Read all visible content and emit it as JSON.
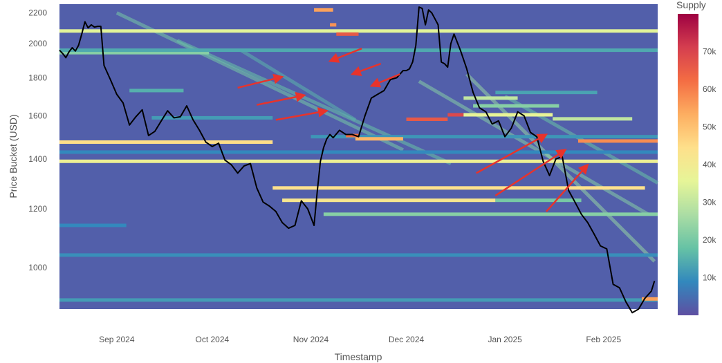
{
  "chart_data": {
    "type": "heatmap",
    "title": "",
    "xlabel": "Timestamp",
    "ylabel": "Price Bucket (USD)",
    "x_range": [
      "2024-08-14",
      "2025-02-18"
    ],
    "x_ticks": [
      {
        "date": "2024-09-01",
        "label": "Sep 2024"
      },
      {
        "date": "2024-10-01",
        "label": "Oct 2024"
      },
      {
        "date": "2024-11-01",
        "label": "Nov 2024"
      },
      {
        "date": "2024-12-01",
        "label": "Dec 2024"
      },
      {
        "date": "2025-01-01",
        "label": "Jan 2025"
      },
      {
        "date": "2025-02-01",
        "label": "Feb 2025"
      }
    ],
    "y_scale": "log",
    "y_range": [
      880,
      2260
    ],
    "y_ticks": [
      1000,
      1200,
      1400,
      1600,
      1800,
      2000,
      2200
    ],
    "colorbar": {
      "title": "Supply",
      "range": [
        0,
        80000
      ],
      "ticks": [
        {
          "value": 10000,
          "label": "10k"
        },
        {
          "value": 20000,
          "label": "20k"
        },
        {
          "value": 30000,
          "label": "30k"
        },
        {
          "value": 40000,
          "label": "40k"
        },
        {
          "value": 50000,
          "label": "50k"
        },
        {
          "value": 60000,
          "label": "60k"
        },
        {
          "value": 70000,
          "label": "70k"
        }
      ],
      "colorscale": [
        "#5e4fa2",
        "#3288bd",
        "#66c2a5",
        "#abdda4",
        "#e6f598",
        "#fee08b",
        "#fdae61",
        "#f46d43",
        "#d53e4f",
        "#9e0142"
      ]
    },
    "background_supply": 2500,
    "supply_bands": [
      {
        "start": "2024-08-14",
        "end": "2025-02-18",
        "price": 2080,
        "supply": 35000
      },
      {
        "start": "2024-08-14",
        "end": "2025-02-18",
        "price": 1390,
        "supply": 38000
      },
      {
        "start": "2024-08-14",
        "end": "2024-10-20",
        "price": 1475,
        "supply": 45000
      },
      {
        "start": "2024-10-20",
        "end": "2025-02-14",
        "price": 1280,
        "supply": 44000
      },
      {
        "start": "2024-10-23",
        "end": "2024-12-29",
        "price": 1232,
        "supply": 42000
      },
      {
        "start": "2024-12-29",
        "end": "2025-01-25",
        "price": 1232,
        "supply": 20000
      },
      {
        "start": "2024-11-05",
        "end": "2025-02-18",
        "price": 1180,
        "supply": 22000
      },
      {
        "start": "2024-08-14",
        "end": "2024-09-30",
        "price": 1945,
        "supply": 22000
      },
      {
        "start": "2024-08-14",
        "end": "2025-02-18",
        "price": 1960,
        "supply": 14000
      },
      {
        "start": "2024-08-14",
        "end": "2025-02-18",
        "price": 1040,
        "supply": 10000
      },
      {
        "start": "2024-08-14",
        "end": "2025-02-18",
        "price": 905,
        "supply": 12000
      },
      {
        "start": "2024-08-14",
        "end": "2024-09-04",
        "price": 1140,
        "supply": 9000
      },
      {
        "start": "2024-08-14",
        "end": "2025-02-18",
        "price": 1430,
        "supply": 9000
      },
      {
        "start": "2024-11-01",
        "end": "2025-02-18",
        "price": 1500,
        "supply": 11000
      },
      {
        "start": "2024-11-15",
        "end": "2024-11-30",
        "price": 1490,
        "supply": 52000
      },
      {
        "start": "2024-11-12",
        "end": "2024-11-16",
        "price": 1505,
        "supply": 62000
      },
      {
        "start": "2024-12-01",
        "end": "2024-12-14",
        "price": 1583,
        "supply": 66000
      },
      {
        "start": "2024-12-14",
        "end": "2024-12-19",
        "price": 1605,
        "supply": 69000
      },
      {
        "start": "2024-12-19",
        "end": "2025-01-16",
        "price": 1605,
        "supply": 36000
      },
      {
        "start": "2025-01-16",
        "end": "2025-02-10",
        "price": 1585,
        "supply": 30000
      },
      {
        "start": "2024-12-19",
        "end": "2025-01-05",
        "price": 1690,
        "supply": 30000
      },
      {
        "start": "2024-12-22",
        "end": "2025-01-18",
        "price": 1650,
        "supply": 22000
      },
      {
        "start": "2025-01-24",
        "end": "2025-02-18",
        "price": 1480,
        "supply": 58000
      },
      {
        "start": "2024-11-02",
        "end": "2024-11-08",
        "price": 2220,
        "supply": 55000
      },
      {
        "start": "2024-11-07",
        "end": "2024-11-09",
        "price": 2120,
        "supply": 57000
      },
      {
        "start": "2024-11-09",
        "end": "2024-11-16",
        "price": 2060,
        "supply": 66000
      },
      {
        "start": "2024-09-05",
        "end": "2024-09-22",
        "price": 1730,
        "supply": 15000
      },
      {
        "start": "2024-09-12",
        "end": "2024-10-20",
        "price": 1590,
        "supply": 12000
      },
      {
        "start": "2024-12-29",
        "end": "2025-01-30",
        "price": 1720,
        "supply": 13000
      },
      {
        "start": "2025-02-13",
        "end": "2025-02-18",
        "price": 908,
        "supply": 55000
      }
    ],
    "supply_diagonals": [
      {
        "start": "2024-09-01",
        "start_price": 2200,
        "end": "2024-11-30",
        "end_price": 1440,
        "supply": 20000
      },
      {
        "start": "2024-09-20",
        "start_price": 2020,
        "end": "2024-12-15",
        "end_price": 1380,
        "supply": 18000
      },
      {
        "start": "2024-10-10",
        "start_price": 1960,
        "end": "2024-11-15",
        "end_price": 1580,
        "supply": 16000
      },
      {
        "start": "2024-12-05",
        "start_price": 1780,
        "end": "2025-02-15",
        "end_price": 1180,
        "supply": 22000
      },
      {
        "start": "2024-12-20",
        "start_price": 1820,
        "end": "2025-02-17",
        "end_price": 1020,
        "supply": 24000
      },
      {
        "start": "2025-01-01",
        "start_price": 1700,
        "end": "2025-02-18",
        "end_price": 1300,
        "supply": 18000
      }
    ],
    "series": [
      {
        "type": "line",
        "x": [
          "2024-08-14",
          "2024-08-15",
          "2024-08-16",
          "2024-08-17",
          "2024-08-18",
          "2024-08-19",
          "2024-08-20",
          "2024-08-21",
          "2024-08-22",
          "2024-08-23",
          "2024-08-24",
          "2024-08-25",
          "2024-08-26",
          "2024-08-27",
          "2024-08-28",
          "2024-08-30",
          "2024-09-01",
          "2024-09-03",
          "2024-09-05",
          "2024-09-07",
          "2024-09-09",
          "2024-09-11",
          "2024-09-13",
          "2024-09-15",
          "2024-09-17",
          "2024-09-19",
          "2024-09-21",
          "2024-09-23",
          "2024-09-25",
          "2024-09-27",
          "2024-09-29",
          "2024-10-01",
          "2024-10-03",
          "2024-10-05",
          "2024-10-07",
          "2024-10-09",
          "2024-10-11",
          "2024-10-13",
          "2024-10-15",
          "2024-10-17",
          "2024-10-19",
          "2024-10-21",
          "2024-10-23",
          "2024-10-25",
          "2024-10-27",
          "2024-10-29",
          "2024-10-31",
          "2024-11-02",
          "2024-11-03",
          "2024-11-04",
          "2024-11-05",
          "2024-11-06",
          "2024-11-07",
          "2024-11-08",
          "2024-11-10",
          "2024-11-12",
          "2024-11-14",
          "2024-11-16",
          "2024-11-18",
          "2024-11-20",
          "2024-11-22",
          "2024-11-24",
          "2024-11-26",
          "2024-11-28",
          "2024-11-30",
          "2024-12-01",
          "2024-12-02",
          "2024-12-03",
          "2024-12-04",
          "2024-12-05",
          "2024-12-06",
          "2024-12-07",
          "2024-12-08",
          "2024-12-09",
          "2024-12-10",
          "2024-12-11",
          "2024-12-12",
          "2024-12-13",
          "2024-12-14",
          "2024-12-15",
          "2024-12-16",
          "2024-12-18",
          "2024-12-20",
          "2024-12-22",
          "2024-12-24",
          "2024-12-26",
          "2024-12-28",
          "2024-12-30",
          "2025-01-01",
          "2025-01-03",
          "2025-01-05",
          "2025-01-07",
          "2025-01-09",
          "2025-01-11",
          "2025-01-13",
          "2025-01-15",
          "2025-01-17",
          "2025-01-19",
          "2025-01-21",
          "2025-01-23",
          "2025-01-25",
          "2025-01-27",
          "2025-01-29",
          "2025-01-31",
          "2025-02-02",
          "2025-02-04",
          "2025-02-06",
          "2025-02-08",
          "2025-02-10",
          "2025-02-12",
          "2025-02-14",
          "2025-02-16",
          "2025-02-17"
        ],
        "y": [
          1960,
          1940,
          1915,
          1950,
          1975,
          1955,
          1990,
          2060,
          2140,
          2100,
          2120,
          2105,
          2110,
          2110,
          1870,
          1790,
          1710,
          1665,
          1555,
          1595,
          1630,
          1505,
          1525,
          1575,
          1625,
          1590,
          1595,
          1650,
          1580,
          1530,
          1475,
          1455,
          1470,
          1395,
          1375,
          1340,
          1370,
          1380,
          1280,
          1225,
          1210,
          1190,
          1150,
          1130,
          1140,
          1230,
          1200,
          1140,
          1265,
          1390,
          1450,
          1490,
          1510,
          1495,
          1530,
          1510,
          1510,
          1500,
          1600,
          1690,
          1710,
          1730,
          1790,
          1800,
          1840,
          1840,
          1850,
          1890,
          1990,
          2240,
          2230,
          2120,
          2220,
          2200,
          2160,
          2120,
          1890,
          1880,
          1860,
          2000,
          2060,
          1960,
          1850,
          1720,
          1640,
          1620,
          1560,
          1575,
          1500,
          1540,
          1620,
          1600,
          1520,
          1500,
          1390,
          1330,
          1400,
          1410,
          1270,
          1225,
          1180,
          1150,
          1110,
          1070,
          1060,
          950,
          940,
          900,
          870,
          880,
          910,
          930,
          960
        ]
      }
    ],
    "annotations": [
      {
        "type": "arrow",
        "color": "#e8332b",
        "from": [
          "2024-10-09",
          1745
        ],
        "to": [
          "2024-10-23",
          1805
        ]
      },
      {
        "type": "arrow",
        "color": "#e8332b",
        "from": [
          "2024-10-15",
          1655
        ],
        "to": [
          "2024-10-30",
          1705
        ]
      },
      {
        "type": "arrow",
        "color": "#e8332b",
        "from": [
          "2024-10-21",
          1580
        ],
        "to": [
          "2024-11-06",
          1625
        ]
      },
      {
        "type": "arrow",
        "color": "#e8332b",
        "from": [
          "2024-11-17",
          1970
        ],
        "to": [
          "2024-11-07",
          1895
        ]
      },
      {
        "type": "arrow",
        "color": "#e8332b",
        "from": [
          "2024-11-23",
          1880
        ],
        "to": [
          "2024-11-14",
          1820
        ]
      },
      {
        "type": "arrow",
        "color": "#e8332b",
        "from": [
          "2024-11-29",
          1820
        ],
        "to": [
          "2024-11-20",
          1755
        ]
      },
      {
        "type": "arrow",
        "color": "#e8332b",
        "from": [
          "2024-12-23",
          1340
        ],
        "to": [
          "2025-01-14",
          1510
        ]
      },
      {
        "type": "arrow",
        "color": "#e8332b",
        "from": [
          "2024-12-29",
          1250
        ],
        "to": [
          "2025-01-20",
          1440
        ]
      },
      {
        "type": "arrow",
        "color": "#e8332b",
        "from": [
          "2025-01-14",
          1190
        ],
        "to": [
          "2025-01-27",
          1375
        ]
      }
    ]
  }
}
